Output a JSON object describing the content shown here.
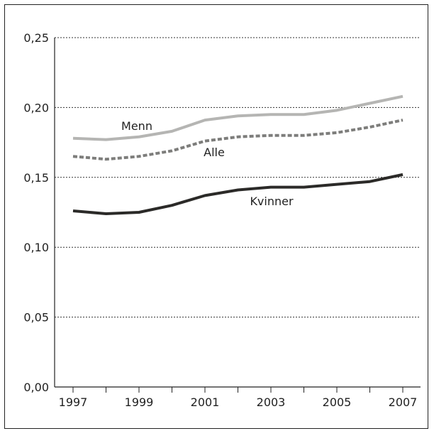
{
  "chart_data": {
    "type": "line",
    "x": [
      1997,
      1998,
      1999,
      2000,
      2001,
      2002,
      2003,
      2004,
      2005,
      2006,
      2007
    ],
    "x_ticks": [
      "1997",
      "1999",
      "2001",
      "2003",
      "2005",
      "2007"
    ],
    "y_ticks": [
      "0,00",
      "0,05",
      "0,10",
      "0,15",
      "0,20",
      "0,25"
    ],
    "ylim": [
      0,
      0.25
    ],
    "grid": "horizontal dotted",
    "legend": "inline labels",
    "series": [
      {
        "name": "Menn",
        "color": "#b5b5b3",
        "style": "solid",
        "values": [
          0.178,
          0.177,
          0.179,
          0.183,
          0.191,
          0.194,
          0.195,
          0.195,
          0.198,
          0.203,
          0.208
        ]
      },
      {
        "name": "Alle",
        "color": "#7d7d7b",
        "style": "dashed",
        "values": [
          0.165,
          0.163,
          0.165,
          0.169,
          0.176,
          0.179,
          0.18,
          0.18,
          0.182,
          0.186,
          0.191
        ]
      },
      {
        "name": "Kvinner",
        "color": "#2b2a28",
        "style": "solid",
        "values": [
          0.126,
          0.124,
          0.125,
          0.13,
          0.137,
          0.141,
          0.143,
          0.143,
          0.145,
          0.147,
          0.152
        ]
      }
    ]
  }
}
